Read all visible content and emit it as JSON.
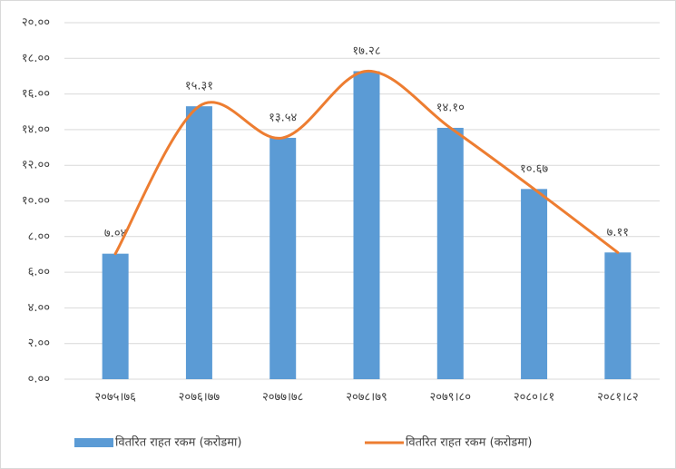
{
  "chart_data": {
    "type": "bar",
    "categories": [
      "२०७५।७६",
      "२०७६।७७",
      "२०७७।७८",
      "२०७८।७९",
      "२०७९।८०",
      "२०८०।८१",
      "२०८१।८२"
    ],
    "series": [
      {
        "name": "वितरित राहत रकम (करोडमा)",
        "type": "bar",
        "color": "#5b9bd5",
        "values": [
          7.04,
          15.31,
          13.54,
          17.28,
          14.1,
          10.67,
          7.11
        ],
        "value_labels": [
          "७.०४",
          "१५.३१",
          "१३.५४",
          "१७.२८",
          "१४.१०",
          "१०.६७",
          "७.११"
        ]
      },
      {
        "name": "वितरित राहत रकम (करोडमा)",
        "type": "line",
        "color": "#ed7d31",
        "values": [
          7.04,
          15.31,
          13.54,
          17.28,
          14.1,
          10.67,
          7.11
        ]
      }
    ],
    "ylim": [
      0,
      20
    ],
    "yticks": [
      {
        "value": 0,
        "label": "०.००"
      },
      {
        "value": 2,
        "label": "२.००"
      },
      {
        "value": 4,
        "label": "४.००"
      },
      {
        "value": 6,
        "label": "६.००"
      },
      {
        "value": 8,
        "label": "८.००"
      },
      {
        "value": 10,
        "label": "१०.००"
      },
      {
        "value": 12,
        "label": "१२.००"
      },
      {
        "value": 14,
        "label": "१४.००"
      },
      {
        "value": 16,
        "label": "१६.००"
      },
      {
        "value": 18,
        "label": "१८.००"
      },
      {
        "value": 20,
        "label": "२०.००"
      }
    ],
    "grid": true,
    "legend": "bottom"
  }
}
